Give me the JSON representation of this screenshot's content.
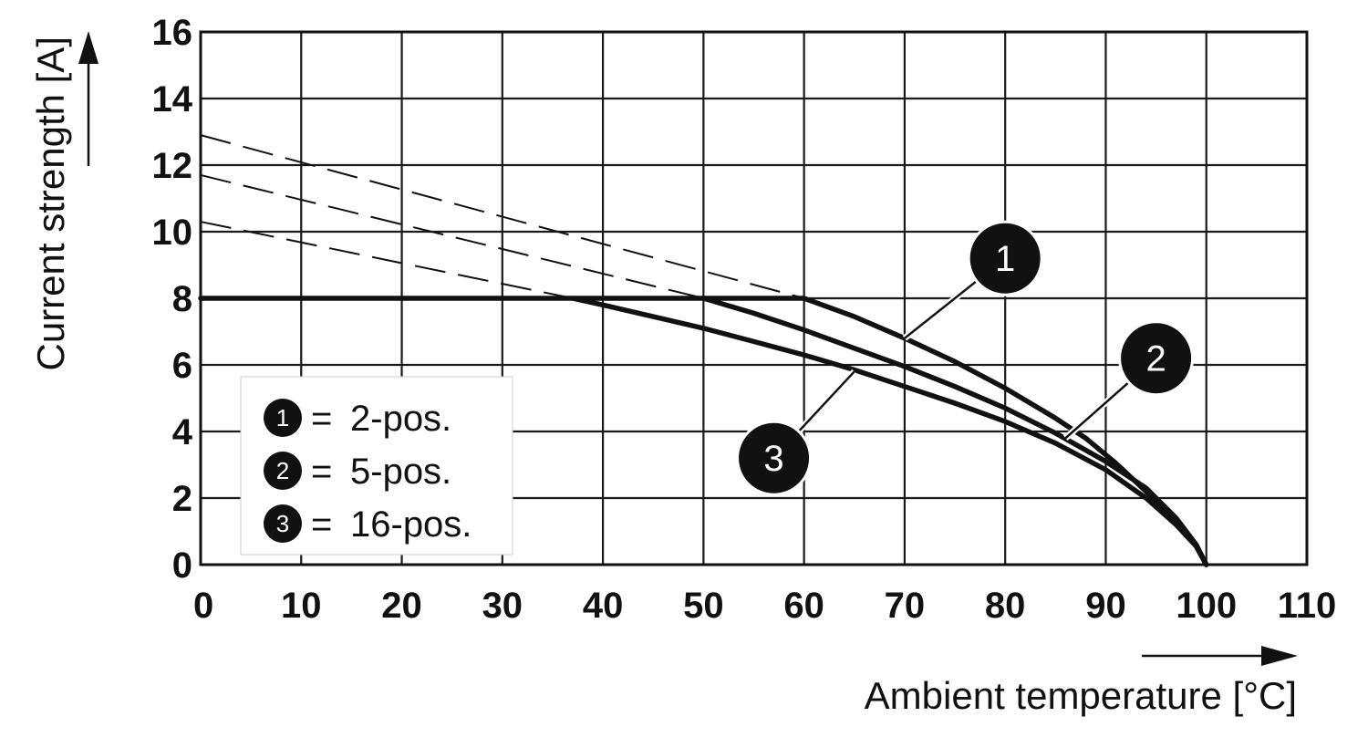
{
  "chart_data": {
    "type": "line",
    "xlabel": "Ambient temperature [°C]",
    "ylabel": "Current strength [A]",
    "xlim": [
      0,
      110
    ],
    "ylim": [
      0,
      16
    ],
    "x_ticks": [
      "0",
      "10",
      "20",
      "30",
      "40",
      "50",
      "60",
      "70",
      "80",
      "90",
      "100",
      "110"
    ],
    "y_ticks": [
      "0",
      "2",
      "4",
      "6",
      "8",
      "10",
      "12",
      "14",
      "16"
    ],
    "grid": true,
    "legend_placement": "bottom-left",
    "legend": [
      {
        "id": "1",
        "eq": "=",
        "text": "2-pos."
      },
      {
        "id": "2",
        "eq": "=",
        "text": "5-pos."
      },
      {
        "id": "3",
        "eq": "=",
        "text": "16-pos."
      }
    ],
    "max_line": {
      "x": [
        0,
        60
      ],
      "y": [
        8,
        8
      ]
    },
    "series": [
      {
        "name": "1",
        "label_at": [
          80,
          9.2
        ],
        "leader_to": [
          70,
          6.8
        ],
        "solid": {
          "x": [
            60,
            65,
            70,
            75,
            80,
            85,
            88,
            91,
            94,
            97,
            99,
            100
          ],
          "y": [
            8,
            7.45,
            6.8,
            6.1,
            5.3,
            4.4,
            3.8,
            3.05,
            2.2,
            1.25,
            0.55,
            0
          ]
        },
        "extrapolated": {
          "x": [
            0,
            60
          ],
          "y": [
            12.9,
            8
          ]
        }
      },
      {
        "name": "2",
        "label_at": [
          95,
          6.2
        ],
        "leader_to": [
          86,
          3.8
        ],
        "solid": {
          "x": [
            50,
            55,
            60,
            65,
            70,
            75,
            80,
            85,
            90,
            94,
            97,
            99,
            100
          ],
          "y": [
            8,
            7.55,
            7.05,
            6.5,
            5.95,
            5.35,
            4.7,
            3.95,
            3.1,
            2.3,
            1.4,
            0.6,
            0
          ]
        },
        "extrapolated": {
          "x": [
            0,
            50
          ],
          "y": [
            11.7,
            8
          ]
        }
      },
      {
        "name": "3",
        "label_at": [
          57,
          3.2
        ],
        "leader_to": [
          65,
          5.8
        ],
        "solid": {
          "x": [
            37,
            40,
            45,
            50,
            55,
            60,
            65,
            70,
            75,
            80,
            85,
            90,
            94,
            97,
            99,
            100
          ],
          "y": [
            8,
            7.8,
            7.45,
            7.1,
            6.7,
            6.3,
            5.85,
            5.35,
            4.85,
            4.3,
            3.65,
            2.85,
            2.0,
            1.2,
            0.55,
            0
          ]
        },
        "extrapolated": {
          "x": [
            0,
            37
          ],
          "y": [
            10.3,
            8
          ]
        }
      }
    ]
  }
}
